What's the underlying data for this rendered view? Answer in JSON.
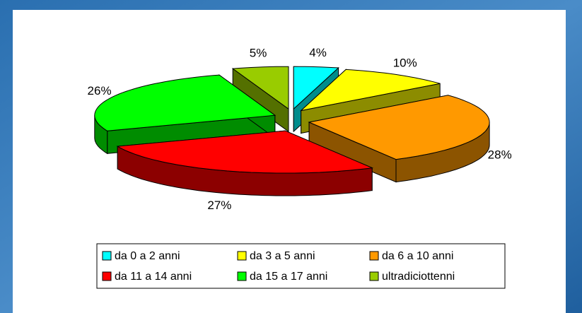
{
  "chart_data": {
    "type": "pie3d",
    "categories": [
      "da 0 a 2 anni",
      "da 3 a 5 anni",
      "da 6 a 10 anni",
      "da 11 a 14 anni",
      "da 15 a 17 anni",
      "ultradiciottenni"
    ],
    "values": [
      4,
      10,
      28,
      27,
      26,
      5
    ],
    "value_labels": [
      "4%",
      "10%",
      "28%",
      "27%",
      "26%",
      "5%"
    ],
    "colors": [
      "#00ffff",
      "#ffff00",
      "#ff9900",
      "#ff0000",
      "#00ff00",
      "#99cc00"
    ]
  }
}
